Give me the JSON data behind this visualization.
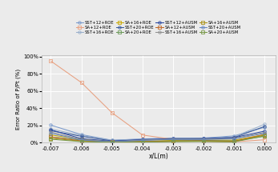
{
  "x": [
    -0.007,
    -0.006,
    -0.005,
    -0.004,
    -0.003,
    -0.002,
    -0.001,
    0.0
  ],
  "series": {
    "SST+12+ROE": [
      0.205,
      0.095,
      0.03,
      0.045,
      0.055,
      0.055,
      0.08,
      0.18
    ],
    "SA+12+ROE": [
      0.95,
      0.7,
      0.35,
      0.09,
      0.04,
      0.015,
      0.01,
      0.035
    ],
    "SST+16+ROE": [
      0.16,
      0.085,
      0.028,
      0.038,
      0.05,
      0.05,
      0.07,
      0.215
    ],
    "SA+16+ROE": [
      0.09,
      0.042,
      0.013,
      0.018,
      0.028,
      0.032,
      0.03,
      0.095
    ],
    "SST+20+ROE": [
      0.14,
      0.075,
      0.022,
      0.033,
      0.043,
      0.048,
      0.06,
      0.19
    ],
    "SA+20+ROE": [
      0.068,
      0.032,
      0.009,
      0.013,
      0.022,
      0.028,
      0.022,
      0.075
    ],
    "SST+12+AUSM": [
      0.15,
      0.048,
      0.018,
      0.038,
      0.048,
      0.048,
      0.06,
      0.135
    ],
    "SA+12+AUSM": [
      0.068,
      0.022,
      0.009,
      0.013,
      0.019,
      0.023,
      0.018,
      0.095
    ],
    "SST+16+AUSM": [
      0.125,
      0.038,
      0.013,
      0.032,
      0.042,
      0.042,
      0.05,
      0.12
    ],
    "SA+16+AUSM": [
      0.052,
      0.018,
      0.007,
      0.01,
      0.016,
      0.018,
      0.013,
      0.09
    ],
    "SST+20+AUSM": [
      0.11,
      0.032,
      0.01,
      0.028,
      0.038,
      0.038,
      0.045,
      0.11
    ],
    "SA+20+AUSM": [
      0.042,
      0.013,
      0.005,
      0.008,
      0.013,
      0.015,
      0.01,
      0.08
    ]
  },
  "colors": {
    "SST+12+ROE": "#7a9acc",
    "SA+12+ROE": "#e8a080",
    "SST+16+ROE": "#9ab0cc",
    "SA+16+ROE": "#c8a800",
    "SST+20+ROE": "#3a5a9a",
    "SA+20+ROE": "#6a9858",
    "SST+12+AUSM": "#2a48a0",
    "SA+12+AUSM": "#c06828",
    "SST+16+AUSM": "#909090",
    "SA+16+AUSM": "#a89018",
    "SST+20+AUSM": "#6888c0",
    "SA+20+AUSM": "#789848"
  },
  "markers": {
    "SST+12+ROE": "o",
    "SA+12+ROE": "s",
    "SST+16+ROE": "o",
    "SA+16+ROE": "s",
    "SST+20+ROE": "o",
    "SA+20+ROE": "s",
    "SST+12+AUSM": "o",
    "SA+12+AUSM": "s",
    "SST+16+AUSM": "o",
    "SA+16+AUSM": "s",
    "SST+20+AUSM": "o",
    "SA+20+AUSM": "s"
  },
  "ylabel": "Error Ratio of P/Pt (%)",
  "xlabel": "x/L(m)",
  "ylim": [
    0.0,
    1.02
  ],
  "xlim": [
    -0.0073,
    0.00035
  ],
  "yticks": [
    0.0,
    0.2,
    0.4,
    0.6,
    0.8,
    1.0
  ],
  "ytick_labels": [
    "0%",
    "20%",
    "40%",
    "60%",
    "80%",
    "100%"
  ],
  "xticks": [
    -0.007,
    -0.006,
    -0.005,
    -0.004,
    -0.003,
    -0.002,
    -0.001,
    0.0
  ],
  "bg_color": "#ebebeb",
  "legend_order": [
    "SST+12+ROE",
    "SA+12+ROE",
    "SST+16+ROE",
    "SA+16+ROE",
    "SST+20+ROE",
    "SA+20+ROE",
    "SST+12+AUSM",
    "SA+12+AUSM",
    "SST+16+AUSM",
    "SA+16+AUSM",
    "SST+20+AUSM",
    "SA+20+AUSM"
  ]
}
